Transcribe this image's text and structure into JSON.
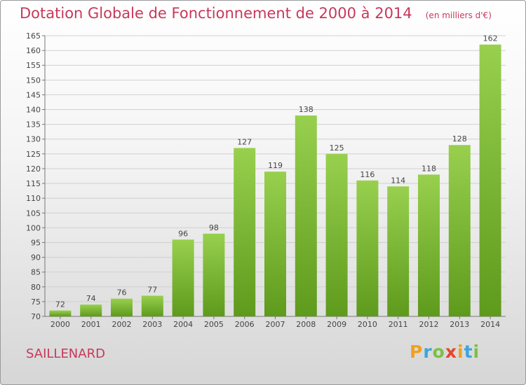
{
  "header": {
    "title": "Dotation Globale de Fonctionnement de 2000 à 2014",
    "subtitle": "(en milliers d'€)"
  },
  "footer": {
    "commune": "SAILLENARD",
    "logo_letters": [
      "P",
      "r",
      "o",
      "x",
      "i",
      "t",
      "i"
    ],
    "logo_colors": [
      "#f0a020",
      "#3aa6dc",
      "#7cc043",
      "#e8442c",
      "#f0a020",
      "#3aa6dc",
      "#7cc043"
    ]
  },
  "chart_data": {
    "type": "bar",
    "title": "Dotation Globale de Fonctionnement de 2000 à 2014",
    "subtitle": "(en milliers d'€)",
    "categories": [
      "2000",
      "2001",
      "2002",
      "2003",
      "2004",
      "2005",
      "2006",
      "2007",
      "2008",
      "2009",
      "2010",
      "2011",
      "2012",
      "2013",
      "2014"
    ],
    "values": [
      72,
      74,
      76,
      77,
      96,
      98,
      127,
      119,
      138,
      125,
      116,
      114,
      118,
      128,
      162
    ],
    "ylim": [
      70,
      165
    ],
    "yticks": [
      70,
      75,
      80,
      85,
      90,
      95,
      100,
      105,
      110,
      115,
      120,
      125,
      130,
      135,
      140,
      145,
      150,
      155,
      160,
      165
    ],
    "grid": true,
    "colors": {
      "bar_light": "#98d04e",
      "bar_dark": "#5e9a1c",
      "grid": "#d0d0d0",
      "text": "#444444"
    }
  }
}
